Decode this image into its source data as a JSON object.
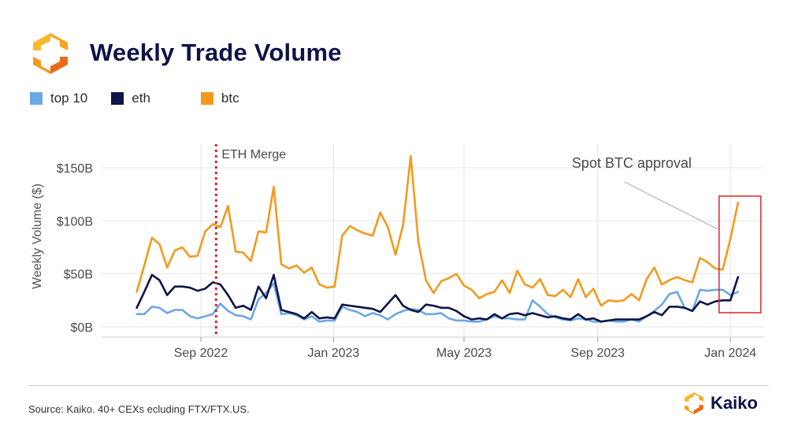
{
  "header": {
    "title": "Weekly Trade Volume",
    "logo_icon": "kaiko-logo-icon"
  },
  "legend": [
    {
      "label": "top 10",
      "color": "#6aa8e6"
    },
    {
      "label": "eth",
      "color": "#0e1446"
    },
    {
      "label": "btc",
      "color": "#f39a1e"
    }
  ],
  "footer": {
    "source": "Source: Kaiko. 40+ CEXs ecluding FTX/FTX.US.",
    "brand": "Kaiko"
  },
  "chart_data": {
    "type": "line",
    "title": "Weekly Trade Volume",
    "ylabel": "Weekly Volume ($)",
    "xlabel": "",
    "ylim": [
      0,
      170
    ],
    "yticks": [
      0,
      50,
      100,
      150
    ],
    "ytick_labels": [
      "$0B",
      "$50B",
      "$100B",
      "$150B"
    ],
    "xticks": [
      {
        "x": "2022-09-01",
        "label": "Sep 2022"
      },
      {
        "x": "2023-01-01",
        "label": "Jan 2023"
      },
      {
        "x": "2023-05-01",
        "label": "May 2023"
      },
      {
        "x": "2023-09-01",
        "label": "Sep 2023"
      },
      {
        "x": "2024-01-01",
        "label": "Jan 2024"
      }
    ],
    "xlim": [
      "2022-06-01",
      "2024-02-01"
    ],
    "grid": true,
    "legend_position": "top-left",
    "x": [
      "2022-07-04",
      "2022-07-11",
      "2022-07-18",
      "2022-07-25",
      "2022-08-01",
      "2022-08-08",
      "2022-08-15",
      "2022-08-22",
      "2022-08-29",
      "2022-09-05",
      "2022-09-12",
      "2022-09-19",
      "2022-09-26",
      "2022-10-03",
      "2022-10-10",
      "2022-10-17",
      "2022-10-24",
      "2022-10-31",
      "2022-11-07",
      "2022-11-14",
      "2022-11-21",
      "2022-11-28",
      "2022-12-05",
      "2022-12-12",
      "2022-12-19",
      "2022-12-26",
      "2023-01-02",
      "2023-01-09",
      "2023-01-16",
      "2023-01-23",
      "2023-01-30",
      "2023-02-06",
      "2023-02-13",
      "2023-02-20",
      "2023-02-27",
      "2023-03-06",
      "2023-03-13",
      "2023-03-20",
      "2023-03-27",
      "2023-04-03",
      "2023-04-10",
      "2023-04-17",
      "2023-04-24",
      "2023-05-01",
      "2023-05-08",
      "2023-05-15",
      "2023-05-22",
      "2023-05-29",
      "2023-06-05",
      "2023-06-12",
      "2023-06-19",
      "2023-06-26",
      "2023-07-03",
      "2023-07-10",
      "2023-07-17",
      "2023-07-24",
      "2023-07-31",
      "2023-08-07",
      "2023-08-14",
      "2023-08-21",
      "2023-08-28",
      "2023-09-04",
      "2023-09-11",
      "2023-09-18",
      "2023-09-25",
      "2023-10-02",
      "2023-10-09",
      "2023-10-16",
      "2023-10-23",
      "2023-10-30",
      "2023-11-06",
      "2023-11-13",
      "2023-11-20",
      "2023-11-27",
      "2023-12-04",
      "2023-12-11",
      "2023-12-18",
      "2023-12-25",
      "2024-01-01",
      "2024-01-08"
    ],
    "series": [
      {
        "name": "top 10",
        "color": "#6aa8e6",
        "values": [
          12,
          12,
          19,
          18,
          13,
          16,
          16,
          10,
          8,
          10,
          12,
          22,
          15,
          11,
          10,
          7,
          26,
          32,
          41,
          12,
          13,
          11,
          7,
          10,
          5,
          6,
          6,
          19,
          16,
          14,
          10,
          13,
          11,
          7,
          12,
          15,
          17,
          16,
          12,
          12,
          13,
          8,
          6,
          6,
          5,
          5,
          7,
          10,
          8,
          8,
          7,
          7,
          25,
          19,
          12,
          9,
          7,
          6,
          8,
          7,
          5,
          5,
          6,
          5,
          5,
          7,
          5,
          10,
          15,
          21,
          31,
          33,
          18,
          15,
          35,
          34,
          35,
          35,
          30,
          33
        ]
      },
      {
        "name": "eth",
        "color": "#0e1446",
        "values": [
          18,
          33,
          49,
          44,
          30,
          38,
          38,
          37,
          34,
          36,
          42,
          40,
          30,
          18,
          20,
          16,
          38,
          27,
          49,
          16,
          14,
          12,
          8,
          14,
          8,
          9,
          8,
          21,
          20,
          19,
          18,
          17,
          14,
          22,
          30,
          20,
          16,
          14,
          21,
          20,
          18,
          18,
          15,
          10,
          7,
          8,
          7,
          12,
          8,
          12,
          13,
          11,
          13,
          11,
          9,
          10,
          8,
          7,
          12,
          7,
          8,
          5,
          6,
          7,
          7,
          7,
          7,
          10,
          14,
          11,
          19,
          19,
          18,
          15,
          24,
          21,
          24,
          25,
          25,
          47
        ]
      },
      {
        "name": "btc",
        "color": "#f39a1e",
        "values": [
          33,
          58,
          84,
          78,
          56,
          72,
          75,
          66,
          67,
          90,
          97,
          94,
          114,
          71,
          70,
          62,
          90,
          89,
          132,
          59,
          55,
          58,
          51,
          56,
          40,
          37,
          38,
          86,
          95,
          91,
          88,
          86,
          108,
          94,
          68,
          96,
          161,
          80,
          44,
          32,
          43,
          46,
          50,
          39,
          35,
          27,
          31,
          33,
          44,
          32,
          53,
          40,
          37,
          45,
          30,
          29,
          35,
          28,
          45,
          28,
          36,
          20,
          25,
          24,
          25,
          31,
          25,
          45,
          56,
          40,
          44,
          47,
          44,
          42,
          65,
          61,
          55,
          54,
          83,
          117
        ]
      }
    ],
    "annotations": [
      {
        "label": "ETH Merge",
        "x": "2022-09-15",
        "style": "red-dotted-vertical-line"
      },
      {
        "label": "Spot BTC approval",
        "x": "2024-01-08",
        "style": "red-box-with-pointer"
      }
    ]
  }
}
